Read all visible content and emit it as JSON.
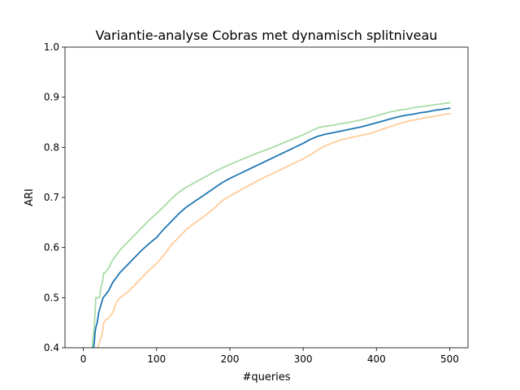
{
  "chart_data": {
    "type": "line",
    "title": "Variantie-analyse Cobras met dynamisch splitniveau",
    "xlabel": "#queries",
    "ylabel": "ARI",
    "xlim": [
      -25,
      525
    ],
    "ylim": [
      0.4,
      1.0
    ],
    "xticks": [
      0,
      100,
      200,
      300,
      400,
      500
    ],
    "yticks": [
      0.4,
      0.5,
      0.6,
      0.7,
      0.8,
      0.9,
      1.0
    ],
    "xtick_labels": [
      "0",
      "100",
      "200",
      "300",
      "400",
      "500"
    ],
    "ytick_labels": [
      "0.4",
      "0.5",
      "0.6",
      "0.7",
      "0.8",
      "0.9",
      "1.0"
    ],
    "grid": false,
    "legend": false,
    "series": [
      {
        "color": "#a8dba8",
        "x": [
          12,
          14,
          15,
          17,
          18,
          20,
          22,
          24,
          26,
          28,
          30,
          35,
          40,
          45,
          50,
          60,
          70,
          80,
          90,
          100,
          110,
          120,
          130,
          140,
          150,
          160,
          170,
          180,
          190,
          200,
          210,
          220,
          230,
          240,
          250,
          260,
          270,
          280,
          290,
          300,
          310,
          320,
          330,
          340,
          350,
          360,
          370,
          380,
          390,
          400,
          410,
          420,
          430,
          440,
          450,
          460,
          470,
          480,
          490,
          500
        ],
        "y": [
          0.4,
          0.43,
          0.44,
          0.5,
          0.5,
          0.5,
          0.5,
          0.52,
          0.53,
          0.55,
          0.55,
          0.56,
          0.575,
          0.585,
          0.595,
          0.61,
          0.625,
          0.64,
          0.655,
          0.668,
          0.682,
          0.697,
          0.71,
          0.72,
          0.728,
          0.736,
          0.744,
          0.752,
          0.759,
          0.766,
          0.772,
          0.778,
          0.784,
          0.79,
          0.795,
          0.801,
          0.807,
          0.813,
          0.819,
          0.825,
          0.832,
          0.839,
          0.842,
          0.844,
          0.847,
          0.849,
          0.852,
          0.855,
          0.859,
          0.863,
          0.867,
          0.871,
          0.874,
          0.876,
          0.879,
          0.881,
          0.883,
          0.885,
          0.887,
          0.889
        ]
      },
      {
        "color": "#ffcc99",
        "x": [
          15,
          17,
          19,
          20,
          22,
          24,
          26,
          28,
          30,
          35,
          40,
          45,
          50,
          60,
          70,
          80,
          90,
          100,
          110,
          120,
          130,
          140,
          150,
          160,
          170,
          180,
          190,
          200,
          210,
          220,
          230,
          240,
          250,
          260,
          270,
          280,
          290,
          300,
          310,
          320,
          330,
          340,
          350,
          360,
          370,
          380,
          390,
          400,
          410,
          420,
          430,
          440,
          450,
          460,
          470,
          480,
          490,
          500
        ],
        "y": [
          0.38,
          0.39,
          0.4,
          0.4,
          0.41,
          0.42,
          0.43,
          0.45,
          0.455,
          0.46,
          0.47,
          0.49,
          0.5,
          0.51,
          0.525,
          0.54,
          0.555,
          0.568,
          0.585,
          0.605,
          0.62,
          0.635,
          0.647,
          0.657,
          0.668,
          0.68,
          0.694,
          0.703,
          0.711,
          0.719,
          0.727,
          0.735,
          0.742,
          0.749,
          0.756,
          0.763,
          0.77,
          0.777,
          0.785,
          0.795,
          0.803,
          0.809,
          0.814,
          0.818,
          0.821,
          0.824,
          0.827,
          0.832,
          0.837,
          0.842,
          0.847,
          0.851,
          0.854,
          0.857,
          0.86,
          0.862,
          0.865,
          0.867
        ]
      },
      {
        "color": "#1f77b4",
        "x": [
          13,
          15,
          16,
          17,
          19,
          21,
          23,
          25,
          27,
          30,
          35,
          40,
          45,
          50,
          60,
          70,
          80,
          90,
          100,
          110,
          120,
          130,
          140,
          150,
          160,
          170,
          180,
          190,
          200,
          210,
          220,
          230,
          240,
          250,
          260,
          270,
          280,
          290,
          300,
          310,
          320,
          330,
          340,
          350,
          360,
          370,
          380,
          390,
          400,
          410,
          420,
          430,
          440,
          450,
          460,
          470,
          480,
          490,
          500
        ],
        "y": [
          0.39,
          0.41,
          0.43,
          0.44,
          0.45,
          0.47,
          0.48,
          0.49,
          0.5,
          0.505,
          0.515,
          0.53,
          0.54,
          0.55,
          0.565,
          0.58,
          0.595,
          0.608,
          0.62,
          0.637,
          0.652,
          0.667,
          0.68,
          0.69,
          0.7,
          0.71,
          0.72,
          0.73,
          0.738,
          0.745,
          0.752,
          0.759,
          0.766,
          0.773,
          0.78,
          0.787,
          0.794,
          0.801,
          0.808,
          0.816,
          0.822,
          0.826,
          0.829,
          0.832,
          0.835,
          0.838,
          0.841,
          0.845,
          0.849,
          0.853,
          0.857,
          0.861,
          0.864,
          0.866,
          0.869,
          0.871,
          0.874,
          0.876,
          0.878
        ]
      }
    ]
  }
}
